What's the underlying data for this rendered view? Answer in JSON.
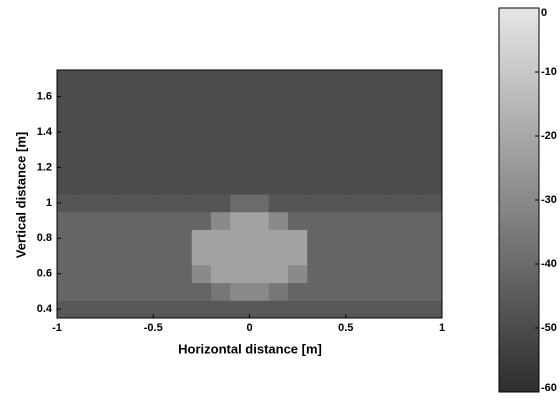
{
  "chart_data": {
    "type": "heatmap",
    "xlabel": "Horizontal distance [m]",
    "ylabel": "Vertical distance [m]",
    "colormap": "gray",
    "x": [
      -0.95,
      -0.85,
      -0.75,
      -0.65,
      -0.55,
      -0.45,
      -0.35,
      -0.25,
      -0.15,
      -0.05,
      0.05,
      0.15,
      0.25,
      0.35,
      0.45,
      0.55,
      0.65,
      0.75,
      0.85,
      0.95
    ],
    "y": [
      0.4,
      0.5,
      0.6,
      0.7,
      0.8,
      0.9,
      1.0,
      1.1,
      1.2,
      1.3,
      1.4,
      1.5,
      1.6,
      1.7
    ],
    "z": [
      [
        -46,
        -46,
        -46,
        -46,
        -46,
        -46,
        -46,
        -46,
        -46,
        -46,
        -46,
        -46,
        -46,
        -46,
        -46,
        -46,
        -46,
        -46,
        -46,
        -46
      ],
      [
        -42,
        -42,
        -42,
        -42,
        -42,
        -42,
        -42,
        -42,
        -36,
        -30,
        -30,
        -36,
        -42,
        -42,
        -42,
        -42,
        -42,
        -42,
        -42,
        -42
      ],
      [
        -42,
        -42,
        -42,
        -42,
        -42,
        -42,
        -42,
        -30,
        -22,
        -22,
        -22,
        -22,
        -30,
        -42,
        -42,
        -42,
        -42,
        -42,
        -42,
        -42
      ],
      [
        -42,
        -42,
        -42,
        -42,
        -42,
        -42,
        -42,
        -22,
        -22,
        -22,
        -22,
        -22,
        -22,
        -42,
        -42,
        -42,
        -42,
        -42,
        -42,
        -42
      ],
      [
        -42,
        -42,
        -42,
        -42,
        -42,
        -42,
        -42,
        -22,
        -22,
        -22,
        -22,
        -22,
        -22,
        -42,
        -42,
        -42,
        -42,
        -42,
        -42,
        -42
      ],
      [
        -42,
        -42,
        -42,
        -42,
        -42,
        -42,
        -42,
        -42,
        -30,
        -22,
        -22,
        -30,
        -42,
        -42,
        -42,
        -42,
        -42,
        -42,
        -42,
        -42
      ],
      [
        -47,
        -47,
        -47,
        -47,
        -47,
        -47,
        -47,
        -47,
        -47,
        -40,
        -40,
        -47,
        -47,
        -47,
        -47,
        -47,
        -47,
        -47,
        -47,
        -47
      ],
      [
        -50,
        -50,
        -50,
        -50,
        -50,
        -50,
        -50,
        -50,
        -50,
        -50,
        -50,
        -50,
        -50,
        -50,
        -50,
        -50,
        -50,
        -50,
        -50,
        -50
      ],
      [
        -50,
        -50,
        -50,
        -50,
        -50,
        -50,
        -50,
        -50,
        -50,
        -50,
        -50,
        -50,
        -50,
        -50,
        -50,
        -50,
        -50,
        -50,
        -50,
        -50
      ],
      [
        -50,
        -50,
        -50,
        -50,
        -50,
        -50,
        -50,
        -50,
        -50,
        -50,
        -50,
        -50,
        -50,
        -50,
        -50,
        -50,
        -50,
        -50,
        -50,
        -50
      ],
      [
        -50,
        -50,
        -50,
        -50,
        -50,
        -50,
        -50,
        -50,
        -50,
        -50,
        -50,
        -50,
        -50,
        -50,
        -50,
        -50,
        -50,
        -50,
        -50,
        -50
      ],
      [
        -50,
        -50,
        -50,
        -50,
        -50,
        -50,
        -50,
        -50,
        -50,
        -50,
        -50,
        -50,
        -50,
        -50,
        -50,
        -50,
        -50,
        -50,
        -50,
        -50
      ],
      [
        -50,
        -50,
        -50,
        -50,
        -50,
        -50,
        -50,
        -50,
        -50,
        -50,
        -50,
        -50,
        -50,
        -50,
        -50,
        -50,
        -50,
        -50,
        -50,
        -50
      ],
      [
        -50,
        -50,
        -50,
        -50,
        -50,
        -50,
        -50,
        -50,
        -50,
        -50,
        -50,
        -50,
        -50,
        -50,
        -50,
        -50,
        -50,
        -50,
        -50,
        -50
      ]
    ],
    "xlim": [
      -1,
      1
    ],
    "xticks": [
      -1,
      -0.5,
      0,
      0.5,
      1
    ],
    "ylim": [
      0.35,
      1.75
    ],
    "yticks": [
      0.4,
      0.6,
      0.8,
      1,
      1.2,
      1.4,
      1.6
    ],
    "colorbar": {
      "lim": [
        -60,
        0
      ],
      "ticks": [
        0,
        -10,
        -20,
        -30,
        -40,
        -50,
        -60
      ]
    }
  }
}
